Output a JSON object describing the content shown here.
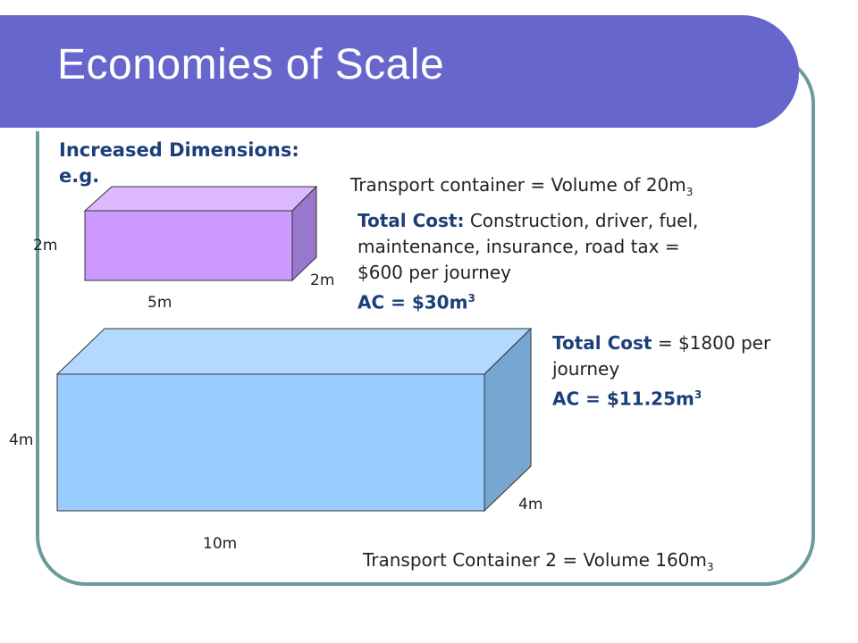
{
  "slide": {
    "title": "Economies of Scale",
    "heading": {
      "line1": "Increased Dimensions:",
      "line2": "e.g."
    }
  },
  "container1": {
    "volume_text": "Transport container = Volume of 20m",
    "volume_exp": "3",
    "cost_label": "Total Cost:",
    "cost_line1": " Construction, driver, fuel,",
    "cost_line2": "maintenance, insurance, road tax =",
    "cost_line3": "$600 per journey",
    "ac_text": "AC = $30m",
    "ac_exp": "3",
    "dim_height": "2m",
    "dim_depth": "2m",
    "dim_length": "5m"
  },
  "container2": {
    "volume_text": "Transport Container 2 = Volume 160m",
    "volume_exp": "3",
    "cost_label": "Total Cost",
    "cost_line1": " = $1800 per",
    "cost_line2": "journey",
    "ac_text": "AC = $11.25m",
    "ac_exp": "3",
    "dim_height": "4m",
    "dim_depth": "4m",
    "dim_length": "10m"
  },
  "colors": {
    "title_bar": "#6666cc",
    "frame_border": "#6b9c9c",
    "box1_front": "#cc99ff",
    "box2_front": "#99ccff",
    "emphasis_text": "#1c3f7a"
  }
}
